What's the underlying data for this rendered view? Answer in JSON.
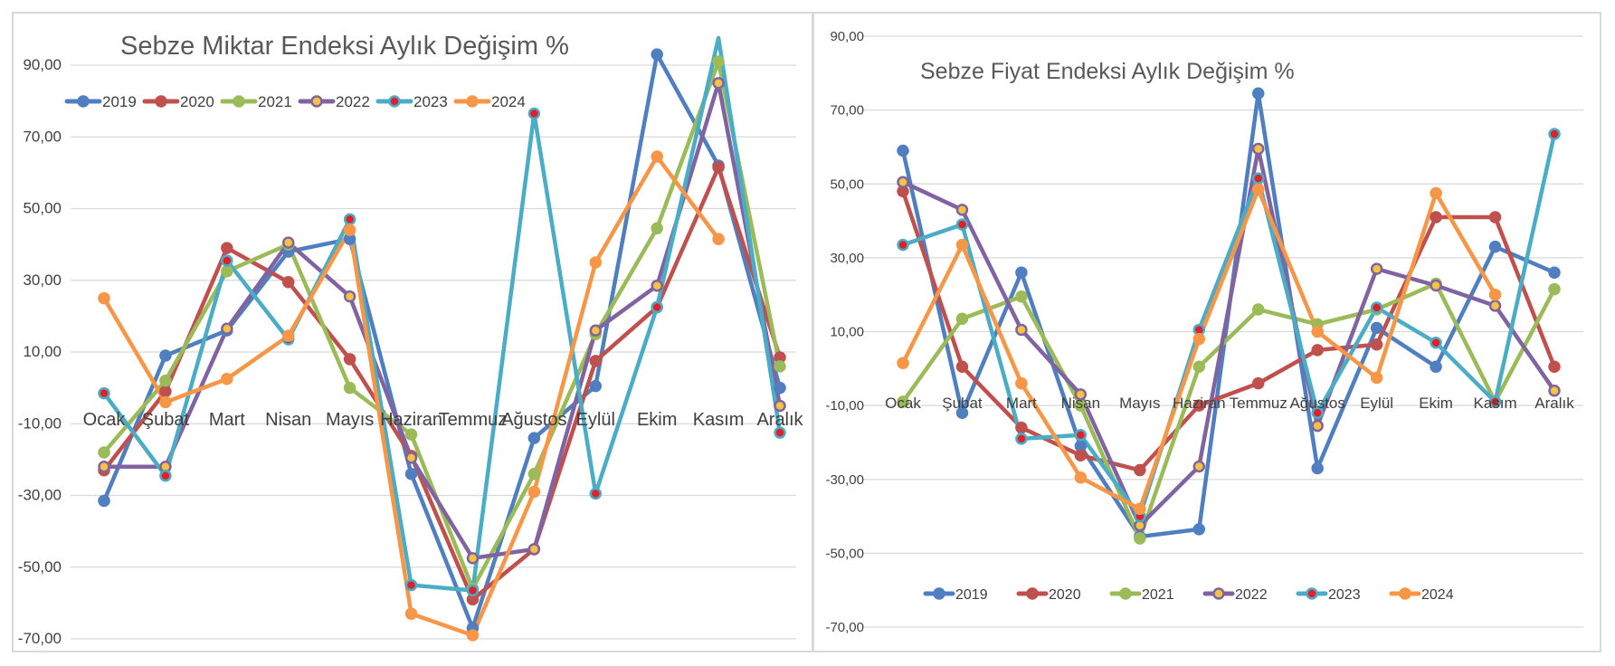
{
  "series_colors": {
    "2019": "#4F7FC0",
    "2020": "#C0504D",
    "2021": "#9BBB59",
    "2022": "#8064A2",
    "2023": "#4BACC6",
    "2024": "#F79646"
  },
  "chart_data": [
    {
      "type": "line",
      "title": "Sebze Miktar Endeksi Aylık Değişim %",
      "categories": [
        "Ocak",
        "Şubat",
        "Mart",
        "Nisan",
        "Mayıs",
        "Haziran",
        "Temmuz",
        "Ağustos",
        "Eylül",
        "Ekim",
        "Kasım",
        "Aralık"
      ],
      "ylim": [
        -70,
        100
      ],
      "yticks": [
        "90,00",
        "70,00",
        "50,00",
        "30,00",
        "10,00",
        "-10,00",
        "-30,00",
        "-50,00",
        "-70,00"
      ],
      "ytick_values": [
        90,
        70,
        50,
        30,
        10,
        -10,
        -30,
        -50,
        -70
      ],
      "legend": "top-left",
      "grid": true,
      "series": [
        {
          "name": "2019",
          "values": [
            -31.5,
            9,
            16,
            38,
            41.5,
            -24,
            -67,
            -14,
            0.5,
            93,
            62,
            0
          ]
        },
        {
          "name": "2020",
          "values": [
            -23,
            -1,
            39,
            29.5,
            8,
            -19,
            -59,
            -45,
            7.5,
            22.5,
            61.5,
            8.5
          ]
        },
        {
          "name": "2021",
          "values": [
            -18,
            2,
            32.5,
            40,
            0,
            -13,
            -56,
            -24,
            15,
            44.5,
            91,
            6
          ]
        },
        {
          "name": "2022",
          "values": [
            -22,
            -22,
            16.5,
            40.5,
            25.5,
            -19.5,
            -47.5,
            -45,
            16,
            28.5,
            85,
            -5
          ]
        },
        {
          "name": "2023",
          "values": [
            -1.5,
            -24.5,
            35.5,
            13.5,
            47,
            -55,
            -56.5,
            76.5,
            -29.5,
            22.5,
            110,
            -12.5
          ]
        },
        {
          "name": "2024",
          "values": [
            25,
            -4,
            2.5,
            14.5,
            44,
            -63,
            -69,
            -29,
            35,
            64.5,
            41.5,
            null
          ]
        }
      ]
    },
    {
      "type": "line",
      "title": "Sebze Fiyat Endeksi Aylık Değişim %",
      "categories": [
        "Ocak",
        "Şubat",
        "Mart",
        "Nisan",
        "Mayıs",
        "Haziran",
        "Temmuz",
        "Ağustos",
        "Eylül",
        "Ekim",
        "Kasım",
        "Aralık"
      ],
      "ylim": [
        -70,
        90
      ],
      "yticks": [
        "90,00",
        "70,00",
        "50,00",
        "30,00",
        "10,00",
        "-10,00",
        "-30,00",
        "-50,00",
        "-70,00"
      ],
      "ytick_values": [
        90,
        70,
        50,
        30,
        10,
        -10,
        -30,
        -50,
        -70
      ],
      "legend": "bottom",
      "grid": true,
      "series": [
        {
          "name": "2019",
          "values": [
            59,
            -12,
            26,
            -21,
            -45.5,
            -43.5,
            74.5,
            -27,
            11,
            0.5,
            33,
            26
          ]
        },
        {
          "name": "2020",
          "values": [
            48,
            0.5,
            -16,
            -23.5,
            -27.5,
            -10,
            -4,
            5,
            6.5,
            41,
            41,
            0.5
          ]
        },
        {
          "name": "2021",
          "values": [
            -9,
            13.5,
            19.5,
            -10,
            -46,
            0.5,
            16,
            12,
            16,
            23,
            -9,
            21.5
          ]
        },
        {
          "name": "2022",
          "values": [
            50.5,
            43,
            10.5,
            -7,
            -42.5,
            -26.5,
            59.5,
            -15.5,
            27,
            22.5,
            17,
            -6
          ]
        },
        {
          "name": "2023",
          "values": [
            33.5,
            39,
            -19,
            -18,
            -40,
            10.5,
            51.5,
            -12,
            16.5,
            7,
            -9,
            63.5
          ]
        },
        {
          "name": "2024",
          "values": [
            1.5,
            33.5,
            -4,
            -29.5,
            -38,
            8,
            48.5,
            10,
            -2.5,
            47.5,
            20,
            null
          ]
        }
      ]
    }
  ]
}
